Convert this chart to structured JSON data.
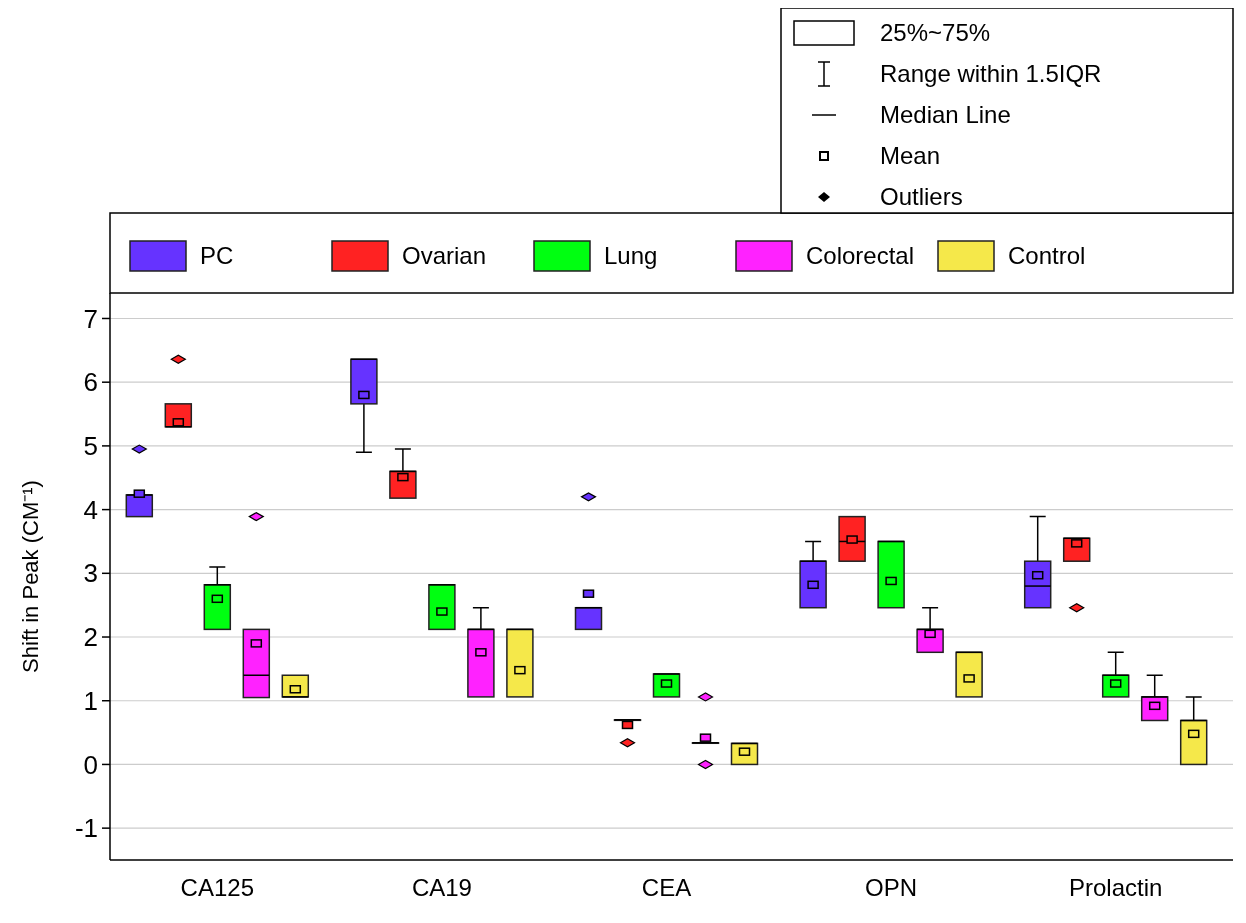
{
  "chart_data": {
    "type": "box",
    "ylabel": "Shift in Peak (CM⁻¹)",
    "categories": [
      "CA125",
      "CA19",
      "CEA",
      "OPN",
      "Prolactin"
    ],
    "ylim": [
      -1.5,
      7.4
    ],
    "yticks": [
      -1,
      0,
      1,
      2,
      3,
      4,
      5,
      6,
      7
    ],
    "grid": "y",
    "legend": "top",
    "annotations": [
      "25%~75%",
      "Range within 1.5IQR",
      "Median Line",
      "Mean",
      "Outliers"
    ],
    "series": [
      {
        "name": "PC",
        "color": "#6633ff",
        "boxes": [
          {
            "low": 3.89,
            "q1": 3.89,
            "median": 4.23,
            "q3": 4.23,
            "high": 4.23,
            "mean": 4.25,
            "outliers": [
              4.95
            ]
          },
          {
            "low": 4.9,
            "q1": 5.66,
            "median": 6.36,
            "q3": 6.36,
            "high": 6.36,
            "mean": 5.8
          },
          {
            "low": 2.12,
            "q1": 2.12,
            "median": 2.46,
            "q3": 2.46,
            "high": 2.46,
            "mean": 2.68,
            "outliers": [
              4.2
            ]
          },
          {
            "low": 2.46,
            "q1": 2.46,
            "median": 3.19,
            "q3": 3.19,
            "high": 3.5,
            "mean": 2.82
          },
          {
            "low": 2.46,
            "q1": 2.46,
            "median": 2.8,
            "q3": 3.19,
            "high": 3.89,
            "mean": 2.97
          }
        ]
      },
      {
        "name": "Ovarian",
        "color": "#ff2222",
        "boxes": [
          {
            "low": 5.3,
            "q1": 5.3,
            "median": 5.3,
            "q3": 5.66,
            "high": 5.66,
            "mean": 5.37,
            "outliers": [
              6.36
            ]
          },
          {
            "low": 4.18,
            "q1": 4.18,
            "median": 4.6,
            "q3": 4.6,
            "high": 4.95,
            "mean": 4.51
          },
          {
            "low": 0.7,
            "q1": 0.7,
            "median": 0.7,
            "q3": 0.7,
            "high": 0.7,
            "mean": 0.62,
            "outliers": [
              0.34
            ]
          },
          {
            "low": 3.19,
            "q1": 3.19,
            "median": 3.5,
            "q3": 3.89,
            "high": 3.89,
            "mean": 3.53
          },
          {
            "low": 3.19,
            "q1": 3.19,
            "median": 3.55,
            "q3": 3.55,
            "high": 3.55,
            "mean": 3.47,
            "outliers": [
              2.46
            ]
          }
        ]
      },
      {
        "name": "Lung",
        "color": "#00ff11",
        "boxes": [
          {
            "low": 2.12,
            "q1": 2.12,
            "median": 2.82,
            "q3": 2.82,
            "high": 3.1,
            "mean": 2.6
          },
          {
            "low": 2.12,
            "q1": 2.12,
            "median": 2.82,
            "q3": 2.82,
            "high": 2.82,
            "mean": 2.4
          },
          {
            "low": 1.06,
            "q1": 1.06,
            "median": 1.42,
            "q3": 1.42,
            "high": 1.42,
            "mean": 1.27
          },
          {
            "low": 2.46,
            "q1": 2.46,
            "median": 3.5,
            "q3": 3.5,
            "high": 3.5,
            "mean": 2.88
          },
          {
            "low": 1.06,
            "q1": 1.06,
            "median": 1.4,
            "q3": 1.4,
            "high": 1.76,
            "mean": 1.27
          }
        ]
      },
      {
        "name": "Colorectal",
        "color": "#ff22ff",
        "boxes": [
          {
            "low": 1.05,
            "q1": 1.05,
            "median": 1.4,
            "q3": 2.12,
            "high": 2.12,
            "mean": 1.9,
            "outliers": [
              3.89
            ]
          },
          {
            "low": 1.06,
            "q1": 1.06,
            "median": 2.12,
            "q3": 2.12,
            "high": 2.46,
            "mean": 1.76
          },
          {
            "low": 0.34,
            "q1": 0.34,
            "median": 0.34,
            "q3": 0.34,
            "high": 0.34,
            "mean": 0.42,
            "outliers": [
              1.06,
              0
            ]
          },
          {
            "low": 1.76,
            "q1": 1.76,
            "median": 2.12,
            "q3": 2.12,
            "high": 2.46,
            "mean": 2.05
          },
          {
            "low": 0.69,
            "q1": 0.69,
            "median": 1.06,
            "q3": 1.06,
            "high": 1.4,
            "mean": 0.92
          }
        ]
      },
      {
        "name": "Control",
        "color": "#f5e84a",
        "boxes": [
          {
            "low": 1.06,
            "q1": 1.06,
            "median": 1.06,
            "q3": 1.4,
            "high": 1.4,
            "mean": 1.18
          },
          {
            "low": 1.06,
            "q1": 1.06,
            "median": 2.12,
            "q3": 2.12,
            "high": 2.12,
            "mean": 1.48
          },
          {
            "low": 0,
            "q1": 0,
            "median": 0.33,
            "q3": 0.33,
            "high": 0.33,
            "mean": 0.2
          },
          {
            "low": 1.06,
            "q1": 1.06,
            "median": 1.76,
            "q3": 1.76,
            "high": 1.76,
            "mean": 1.35
          },
          {
            "low": 0,
            "q1": 0,
            "median": 0.69,
            "q3": 0.69,
            "high": 1.06,
            "mean": 0.48
          }
        ]
      }
    ]
  }
}
